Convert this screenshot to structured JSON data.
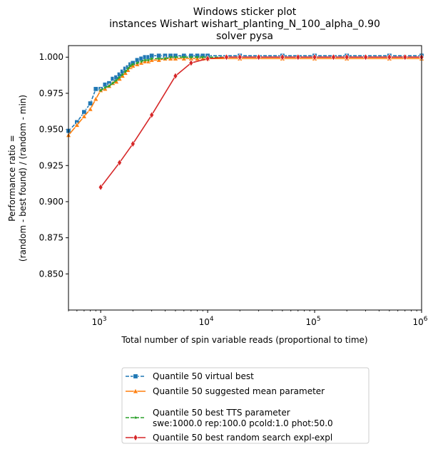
{
  "chart_data": {
    "type": "line",
    "title": [
      "Windows sticker plot",
      "instances Wishart wishart_planting_N_100_alpha_0.90",
      "solver pysa"
    ],
    "xlabel": "Total number of spin variable reads (proportional to time)",
    "ylabel": [
      "Performance ratio =",
      "(random - best found) / (random - min)"
    ],
    "xscale": "log",
    "xlim": [
      500,
      1000000
    ],
    "ylim": [
      0.825,
      1.008
    ],
    "xticks": [
      {
        "value": 1000,
        "base": "10",
        "exp": "3"
      },
      {
        "value": 10000,
        "base": "10",
        "exp": "4"
      },
      {
        "value": 100000,
        "base": "10",
        "exp": "5"
      },
      {
        "value": 1000000,
        "base": "10",
        "exp": "6"
      }
    ],
    "yticks": [
      0.85,
      0.875,
      0.9,
      0.925,
      0.95,
      0.975,
      1.0
    ],
    "ytick_labels": [
      "0.850",
      "0.875",
      "0.900",
      "0.925",
      "0.950",
      "0.975",
      "1.000"
    ],
    "legend_position": "below plot",
    "series": [
      {
        "name": "Quantile 50 virtual best",
        "color": "#1f77b4",
        "marker": "square",
        "dash": "5,2",
        "x": [
          500,
          600,
          700,
          800,
          900,
          1000,
          1100,
          1200,
          1300,
          1400,
          1500,
          1600,
          1700,
          1800,
          1900,
          2000,
          2200,
          2400,
          2600,
          2800,
          3000,
          3500,
          4000,
          4500,
          5000,
          6000,
          7000,
          8000,
          9000,
          10000,
          20000,
          50000,
          100000,
          200000,
          500000,
          1000000
        ],
        "y": [
          0.949,
          0.955,
          0.962,
          0.968,
          0.978,
          0.978,
          0.981,
          0.982,
          0.985,
          0.986,
          0.988,
          0.99,
          0.992,
          0.993,
          0.995,
          0.996,
          0.998,
          0.999,
          1.0,
          1.0,
          1.001,
          1.001,
          1.001,
          1.001,
          1.001,
          1.001,
          1.001,
          1.001,
          1.001,
          1.001,
          1.001,
          1.001,
          1.001,
          1.001,
          1.001,
          1.001
        ]
      },
      {
        "name": "Quantile 50 suggested mean parameter",
        "color": "#ff7f0e",
        "marker": "triangle",
        "dash": "",
        "x": [
          500,
          600,
          700,
          800,
          900,
          1000,
          1100,
          1200,
          1300,
          1400,
          1500,
          1600,
          1700,
          1800,
          1900,
          2000,
          2200,
          2400,
          2600,
          2800,
          3000,
          3500,
          4000,
          4500,
          5000,
          6000,
          7000,
          8000,
          9000,
          10000,
          20000,
          50000,
          100000,
          200000,
          500000,
          1000000
        ],
        "y": [
          0.946,
          0.953,
          0.959,
          0.964,
          0.971,
          0.977,
          0.978,
          0.98,
          0.982,
          0.983,
          0.985,
          0.987,
          0.989,
          0.991,
          0.993,
          0.994,
          0.995,
          0.996,
          0.997,
          0.997,
          0.998,
          0.998,
          0.999,
          0.999,
          0.999,
          0.999,
          0.999,
          0.999,
          0.999,
          0.999,
          0.999,
          0.999,
          0.999,
          0.999,
          0.999,
          0.999
        ]
      },
      {
        "name": "Quantile 50 best TTS parameter\nswe:1000.0 rep:100.0 pcold:1.0 phot:50.0",
        "color": "#2ca02c",
        "marker": "star",
        "dash": "5,2",
        "x": [
          1000,
          1100,
          1200,
          1300,
          1400,
          1500,
          1600,
          1700,
          1800,
          1900,
          2000,
          2200,
          2400,
          2600,
          2800,
          3000,
          3500,
          4000,
          4500,
          5000,
          6000,
          7000,
          8000,
          9000,
          10000,
          20000,
          50000,
          100000,
          200000,
          500000,
          1000000
        ],
        "y": [
          0.977,
          0.979,
          0.98,
          0.982,
          0.984,
          0.986,
          0.988,
          0.99,
          0.992,
          0.994,
          0.995,
          0.996,
          0.997,
          0.998,
          0.998,
          0.999,
          0.999,
          0.999,
          1.0,
          1.0,
          1.0,
          1.0,
          1.0,
          1.0,
          1.0,
          1.0,
          1.0,
          1.0,
          1.0,
          1.0,
          1.0
        ]
      },
      {
        "name": "Quantile 50  best random search expl-expl",
        "color": "#d62728",
        "marker": "diamond",
        "dash": "",
        "x": [
          1000,
          1500,
          2000,
          3000,
          5000,
          7000,
          10000,
          15000,
          20000,
          30000,
          50000,
          70000,
          100000,
          150000,
          200000,
          300000,
          500000,
          700000,
          1000000
        ],
        "y": [
          0.91,
          0.927,
          0.94,
          0.96,
          0.987,
          0.996,
          0.999,
          1.0,
          1.0,
          1.0,
          1.0,
          1.0,
          1.0,
          1.0,
          1.0,
          1.0,
          1.0,
          1.0,
          1.0
        ]
      }
    ]
  }
}
